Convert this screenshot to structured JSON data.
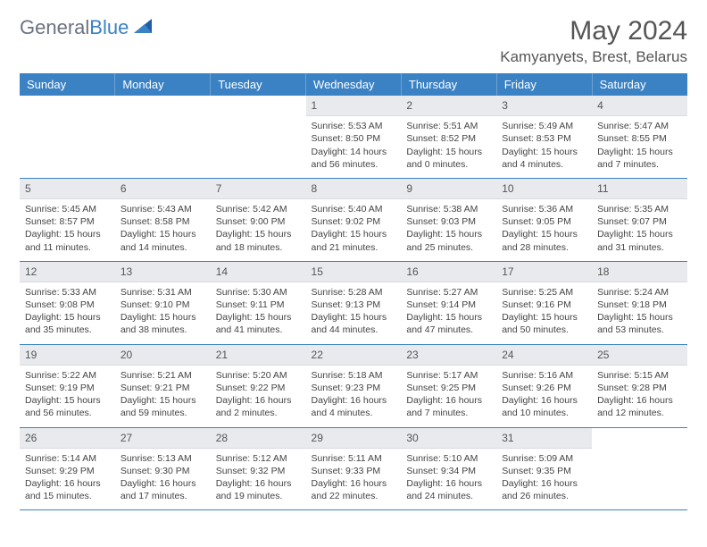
{
  "brand": {
    "word1": "General",
    "word2": "Blue"
  },
  "title": "May 2024",
  "location": "Kamyanyets, Brest, Belarus",
  "colors": {
    "header_bg": "#3b82c4",
    "daynum_bg": "#e8eaed",
    "text": "#444444",
    "rule": "#3b82c4"
  },
  "day_headers": [
    "Sunday",
    "Monday",
    "Tuesday",
    "Wednesday",
    "Thursday",
    "Friday",
    "Saturday"
  ],
  "weeks": [
    [
      {
        "n": "",
        "lines": []
      },
      {
        "n": "",
        "lines": []
      },
      {
        "n": "",
        "lines": []
      },
      {
        "n": "1",
        "lines": [
          "Sunrise: 5:53 AM",
          "Sunset: 8:50 PM",
          "Daylight: 14 hours and 56 minutes."
        ]
      },
      {
        "n": "2",
        "lines": [
          "Sunrise: 5:51 AM",
          "Sunset: 8:52 PM",
          "Daylight: 15 hours and 0 minutes."
        ]
      },
      {
        "n": "3",
        "lines": [
          "Sunrise: 5:49 AM",
          "Sunset: 8:53 PM",
          "Daylight: 15 hours and 4 minutes."
        ]
      },
      {
        "n": "4",
        "lines": [
          "Sunrise: 5:47 AM",
          "Sunset: 8:55 PM",
          "Daylight: 15 hours and 7 minutes."
        ]
      }
    ],
    [
      {
        "n": "5",
        "lines": [
          "Sunrise: 5:45 AM",
          "Sunset: 8:57 PM",
          "Daylight: 15 hours and 11 minutes."
        ]
      },
      {
        "n": "6",
        "lines": [
          "Sunrise: 5:43 AM",
          "Sunset: 8:58 PM",
          "Daylight: 15 hours and 14 minutes."
        ]
      },
      {
        "n": "7",
        "lines": [
          "Sunrise: 5:42 AM",
          "Sunset: 9:00 PM",
          "Daylight: 15 hours and 18 minutes."
        ]
      },
      {
        "n": "8",
        "lines": [
          "Sunrise: 5:40 AM",
          "Sunset: 9:02 PM",
          "Daylight: 15 hours and 21 minutes."
        ]
      },
      {
        "n": "9",
        "lines": [
          "Sunrise: 5:38 AM",
          "Sunset: 9:03 PM",
          "Daylight: 15 hours and 25 minutes."
        ]
      },
      {
        "n": "10",
        "lines": [
          "Sunrise: 5:36 AM",
          "Sunset: 9:05 PM",
          "Daylight: 15 hours and 28 minutes."
        ]
      },
      {
        "n": "11",
        "lines": [
          "Sunrise: 5:35 AM",
          "Sunset: 9:07 PM",
          "Daylight: 15 hours and 31 minutes."
        ]
      }
    ],
    [
      {
        "n": "12",
        "lines": [
          "Sunrise: 5:33 AM",
          "Sunset: 9:08 PM",
          "Daylight: 15 hours and 35 minutes."
        ]
      },
      {
        "n": "13",
        "lines": [
          "Sunrise: 5:31 AM",
          "Sunset: 9:10 PM",
          "Daylight: 15 hours and 38 minutes."
        ]
      },
      {
        "n": "14",
        "lines": [
          "Sunrise: 5:30 AM",
          "Sunset: 9:11 PM",
          "Daylight: 15 hours and 41 minutes."
        ]
      },
      {
        "n": "15",
        "lines": [
          "Sunrise: 5:28 AM",
          "Sunset: 9:13 PM",
          "Daylight: 15 hours and 44 minutes."
        ]
      },
      {
        "n": "16",
        "lines": [
          "Sunrise: 5:27 AM",
          "Sunset: 9:14 PM",
          "Daylight: 15 hours and 47 minutes."
        ]
      },
      {
        "n": "17",
        "lines": [
          "Sunrise: 5:25 AM",
          "Sunset: 9:16 PM",
          "Daylight: 15 hours and 50 minutes."
        ]
      },
      {
        "n": "18",
        "lines": [
          "Sunrise: 5:24 AM",
          "Sunset: 9:18 PM",
          "Daylight: 15 hours and 53 minutes."
        ]
      }
    ],
    [
      {
        "n": "19",
        "lines": [
          "Sunrise: 5:22 AM",
          "Sunset: 9:19 PM",
          "Daylight: 15 hours and 56 minutes."
        ]
      },
      {
        "n": "20",
        "lines": [
          "Sunrise: 5:21 AM",
          "Sunset: 9:21 PM",
          "Daylight: 15 hours and 59 minutes."
        ]
      },
      {
        "n": "21",
        "lines": [
          "Sunrise: 5:20 AM",
          "Sunset: 9:22 PM",
          "Daylight: 16 hours and 2 minutes."
        ]
      },
      {
        "n": "22",
        "lines": [
          "Sunrise: 5:18 AM",
          "Sunset: 9:23 PM",
          "Daylight: 16 hours and 4 minutes."
        ]
      },
      {
        "n": "23",
        "lines": [
          "Sunrise: 5:17 AM",
          "Sunset: 9:25 PM",
          "Daylight: 16 hours and 7 minutes."
        ]
      },
      {
        "n": "24",
        "lines": [
          "Sunrise: 5:16 AM",
          "Sunset: 9:26 PM",
          "Daylight: 16 hours and 10 minutes."
        ]
      },
      {
        "n": "25",
        "lines": [
          "Sunrise: 5:15 AM",
          "Sunset: 9:28 PM",
          "Daylight: 16 hours and 12 minutes."
        ]
      }
    ],
    [
      {
        "n": "26",
        "lines": [
          "Sunrise: 5:14 AM",
          "Sunset: 9:29 PM",
          "Daylight: 16 hours and 15 minutes."
        ]
      },
      {
        "n": "27",
        "lines": [
          "Sunrise: 5:13 AM",
          "Sunset: 9:30 PM",
          "Daylight: 16 hours and 17 minutes."
        ]
      },
      {
        "n": "28",
        "lines": [
          "Sunrise: 5:12 AM",
          "Sunset: 9:32 PM",
          "Daylight: 16 hours and 19 minutes."
        ]
      },
      {
        "n": "29",
        "lines": [
          "Sunrise: 5:11 AM",
          "Sunset: 9:33 PM",
          "Daylight: 16 hours and 22 minutes."
        ]
      },
      {
        "n": "30",
        "lines": [
          "Sunrise: 5:10 AM",
          "Sunset: 9:34 PM",
          "Daylight: 16 hours and 24 minutes."
        ]
      },
      {
        "n": "31",
        "lines": [
          "Sunrise: 5:09 AM",
          "Sunset: 9:35 PM",
          "Daylight: 16 hours and 26 minutes."
        ]
      },
      {
        "n": "",
        "lines": []
      }
    ]
  ]
}
